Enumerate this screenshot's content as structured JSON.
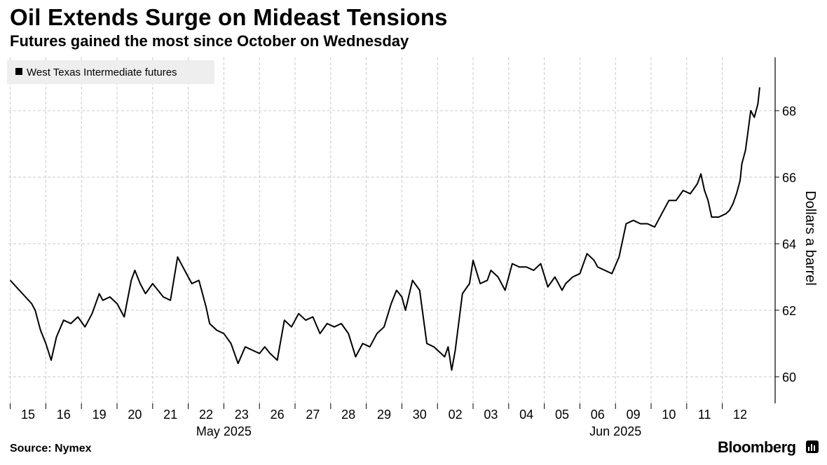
{
  "header": {
    "title": "Oil Extends Surge on Mideast Tensions",
    "subtitle": "Futures gained the most since October on Wednesday"
  },
  "footer": {
    "source": "Source: Nymex",
    "brand": "Bloomberg"
  },
  "colors": {
    "line": "#000000",
    "grid": "#c8c8c8",
    "legend_bg": "#eeeeee"
  },
  "chart_data": {
    "type": "line",
    "ylabel": "Dollars a barrel",
    "ylim": [
      59.2,
      69.6
    ],
    "yticks": [
      60,
      62,
      64,
      66,
      68
    ],
    "grid": true,
    "legend": {
      "placement": "top-left",
      "entries": [
        "West Texas Intermediate futures"
      ]
    },
    "x_tick_labels": [
      "15",
      "16",
      "19",
      "20",
      "21",
      "22",
      "23",
      "26",
      "27",
      "28",
      "29",
      "30",
      "02",
      "03",
      "04",
      "05",
      "06",
      "09",
      "10",
      "11",
      "12"
    ],
    "x_period_labels": [
      {
        "label": "May 2025",
        "at_index": 5.5
      },
      {
        "label": "Jun 2025",
        "at_index": 16.5
      }
    ],
    "series": [
      {
        "name": "West Texas Intermediate futures",
        "x": [
          0,
          0.1,
          0.2,
          0.35,
          0.5,
          0.65,
          0.8,
          1.0,
          1.2,
          1.4,
          1.6,
          1.8,
          2.0,
          2.1,
          2.3,
          2.5,
          2.7,
          2.9,
          3.0,
          3.15,
          3.3,
          3.5,
          3.65,
          3.8,
          4.0,
          4.2,
          4.4,
          4.6,
          4.8,
          5.0,
          5.1,
          5.3,
          5.5,
          5.7,
          5.9,
          6.1,
          6.3,
          6.5,
          6.65,
          6.8,
          7.0,
          7.2,
          7.4,
          7.6,
          7.8,
          8.0,
          8.2,
          8.4,
          8.6,
          8.8,
          9.0,
          9.2,
          9.4,
          9.6,
          9.8,
          10.0,
          10.2,
          10.35,
          10.5,
          10.6,
          10.8,
          11.0,
          11.2,
          11.4,
          11.5,
          11.6,
          11.7,
          11.8,
          11.9,
          12.0,
          12.2,
          12.4,
          12.5,
          12.7,
          12.9,
          13.0,
          13.2,
          13.4,
          13.6,
          13.8,
          14.0,
          14.2,
          14.4,
          14.6,
          14.8,
          15.0,
          15.1,
          15.3,
          15.5,
          15.7,
          15.9,
          16.0,
          16.2,
          16.4,
          16.6,
          16.8,
          17.0,
          17.2,
          17.4,
          17.6,
          17.8,
          18.0,
          18.2,
          18.4,
          18.6,
          18.8,
          18.9,
          19.0,
          19.1,
          19.2,
          19.4,
          19.6,
          19.7,
          19.8,
          19.9,
          20.0,
          20.05,
          20.15,
          20.2,
          20.3,
          20.4,
          20.5,
          20.55
        ],
        "values": [
          62.9,
          62.2,
          62.0,
          61.4,
          61.0,
          60.5,
          61.2,
          61.7,
          61.6,
          61.8,
          61.5,
          61.9,
          62.5,
          62.3,
          62.4,
          62.2,
          61.8,
          62.9,
          63.2,
          62.8,
          62.5,
          62.8,
          62.6,
          62.4,
          62.3,
          63.6,
          63.2,
          62.8,
          62.9,
          62.1,
          61.6,
          61.4,
          61.3,
          61.0,
          60.4,
          60.9,
          60.8,
          60.7,
          60.9,
          60.7,
          60.5,
          61.7,
          61.5,
          61.9,
          61.7,
          61.8,
          61.3,
          61.6,
          61.5,
          61.6,
          61.3,
          60.6,
          61.0,
          60.9,
          61.3,
          61.5,
          62.2,
          62.6,
          62.4,
          62.0,
          62.9,
          62.6,
          61.0,
          60.9,
          60.8,
          60.7,
          60.6,
          60.9,
          60.2,
          60.8,
          62.5,
          62.8,
          63.5,
          62.8,
          62.9,
          63.2,
          63.0,
          62.6,
          63.4,
          63.3,
          63.3,
          63.2,
          63.4,
          62.7,
          63.0,
          62.6,
          62.8,
          63.0,
          63.1,
          63.7,
          63.5,
          63.3,
          63.2,
          63.1,
          63.6,
          64.6,
          64.7,
          64.6,
          64.6,
          64.5,
          64.9,
          65.3,
          65.3,
          65.6,
          65.5,
          65.8,
          66.1,
          65.6,
          65.3,
          64.8,
          64.8,
          64.9,
          65.0,
          65.2,
          65.5,
          65.9,
          66.4,
          66.8,
          67.2,
          68.0,
          67.8,
          68.2,
          68.7
        ]
      }
    ]
  }
}
